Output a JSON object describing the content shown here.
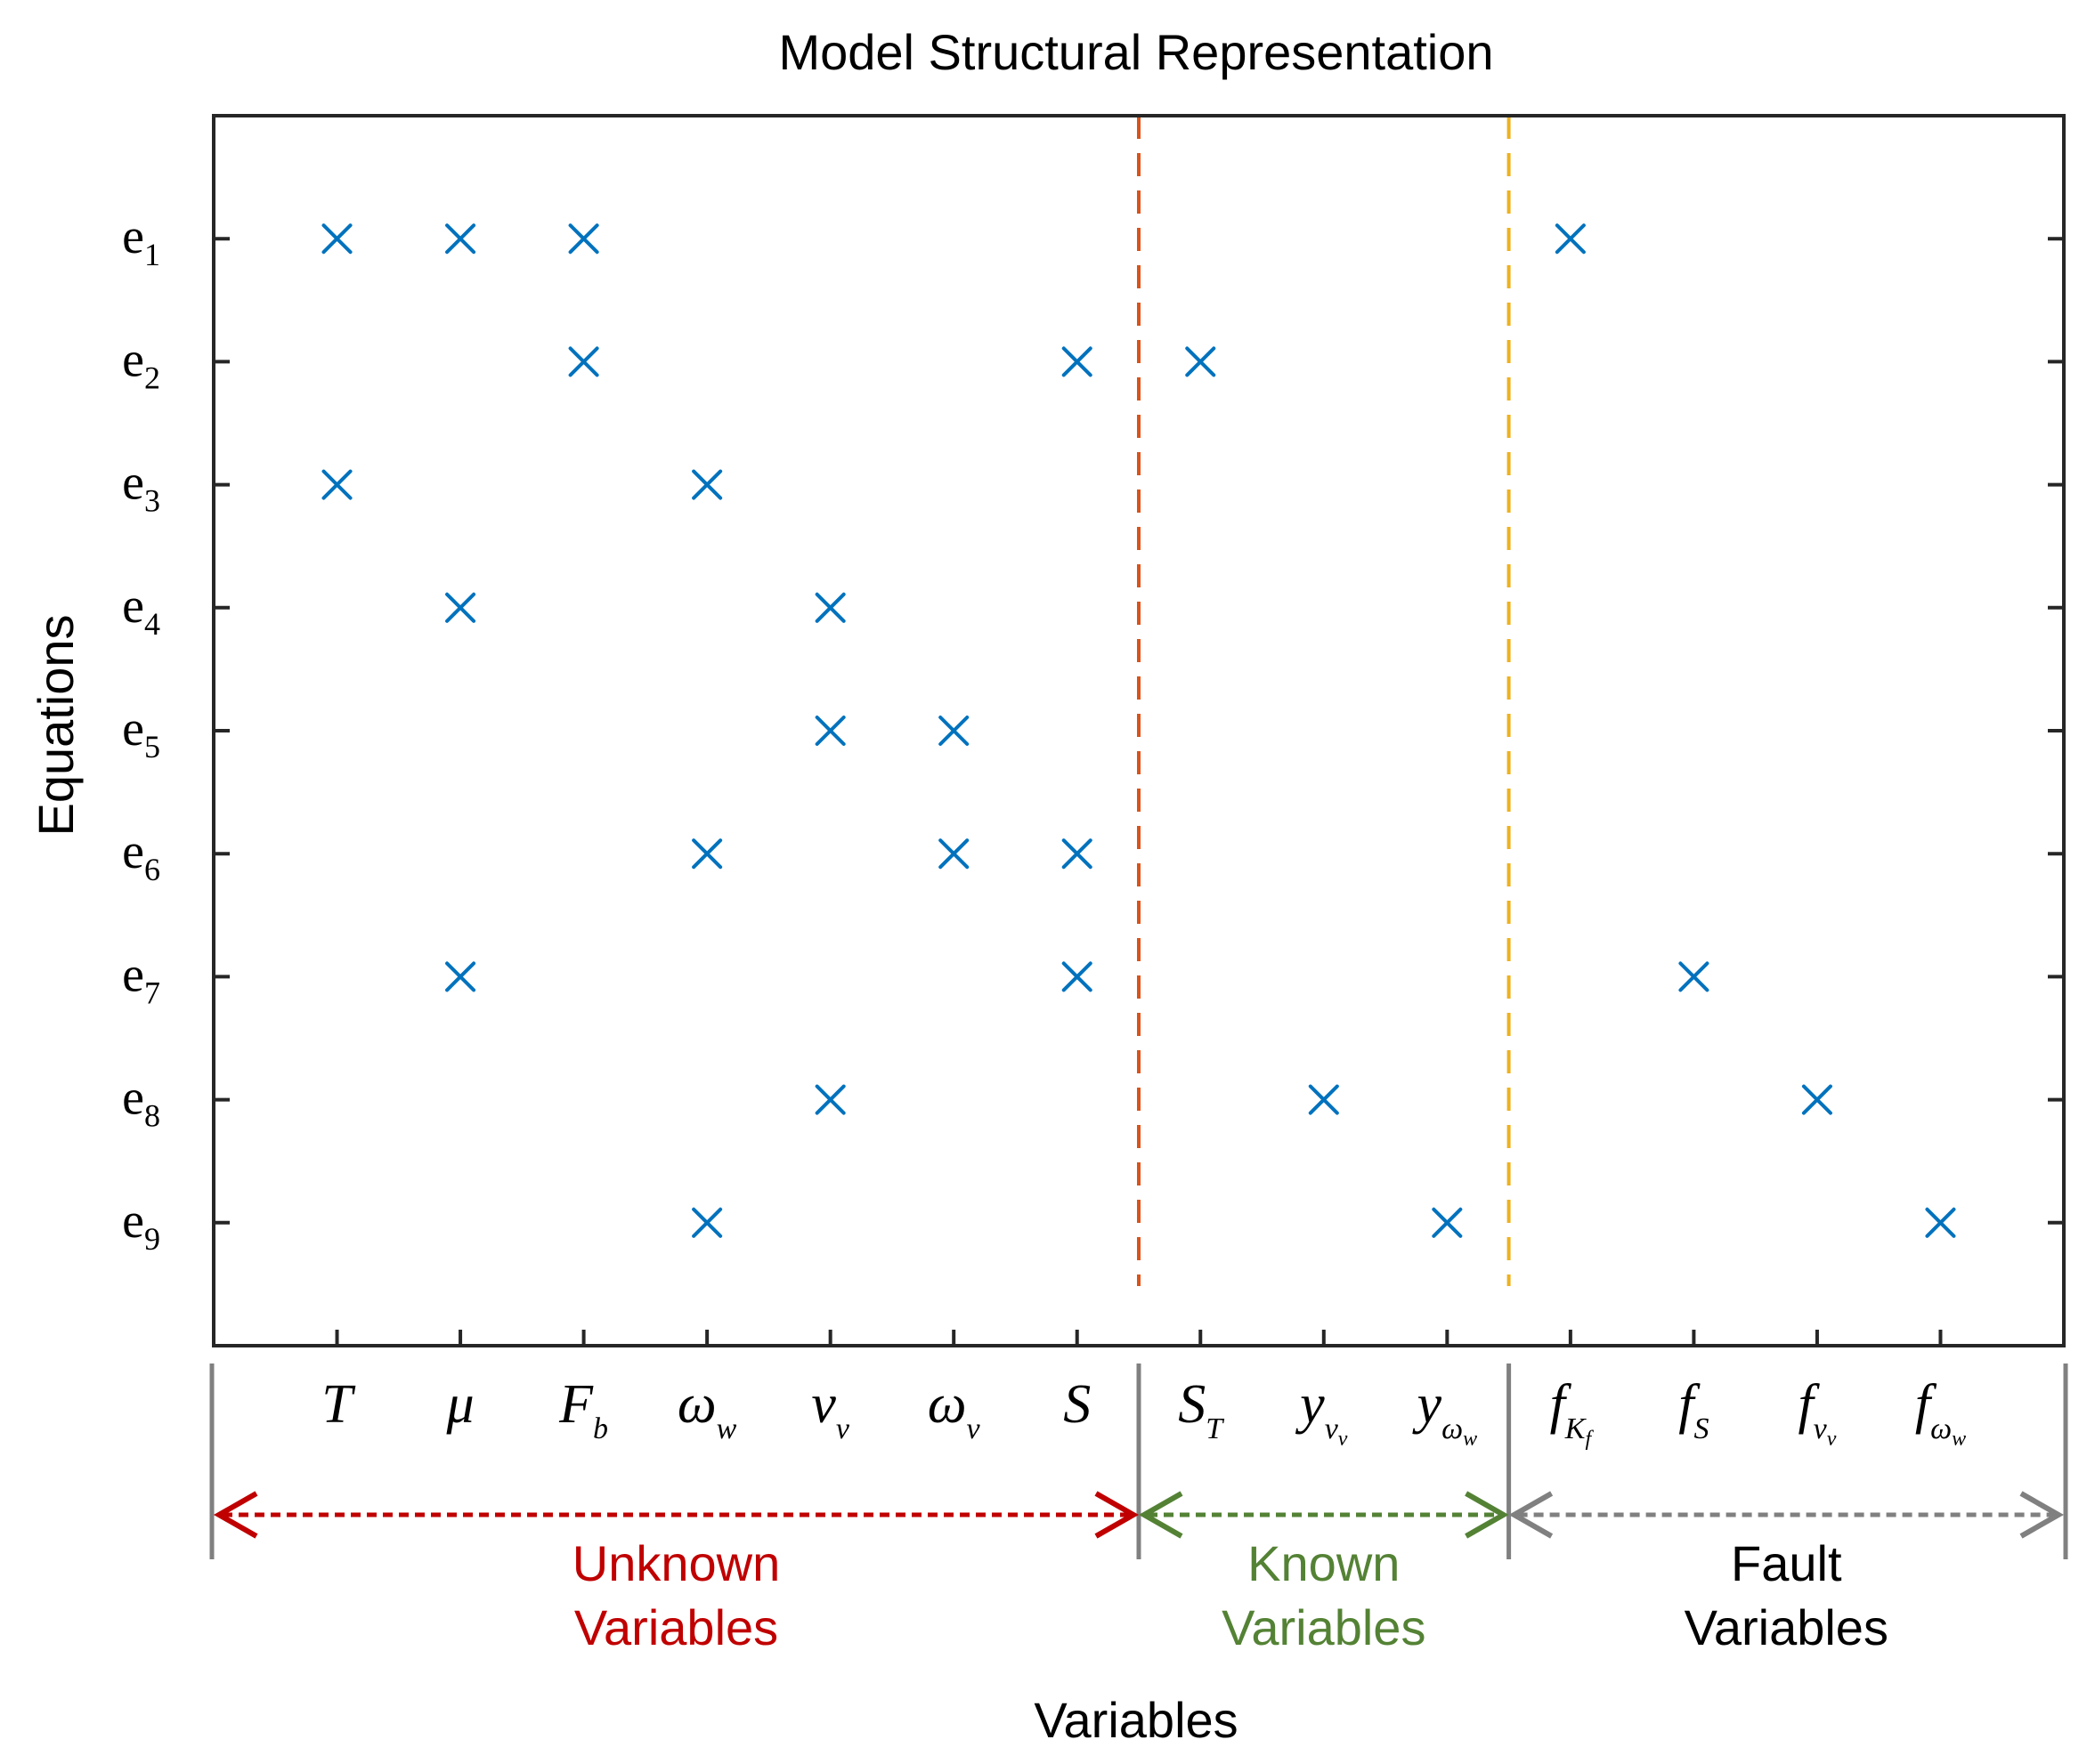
{
  "chart_data": {
    "type": "scatter",
    "title": "Model Structural Representation",
    "xlabel": "Variables",
    "ylabel": "Equations",
    "marker": "x",
    "marker_color": "#0072BD",
    "equations": [
      {
        "base": "e",
        "sub": "1"
      },
      {
        "base": "e",
        "sub": "2"
      },
      {
        "base": "e",
        "sub": "3"
      },
      {
        "base": "e",
        "sub": "4"
      },
      {
        "base": "e",
        "sub": "5"
      },
      {
        "base": "e",
        "sub": "6"
      },
      {
        "base": "e",
        "sub": "7"
      },
      {
        "base": "e",
        "sub": "8"
      },
      {
        "base": "e",
        "sub": "9"
      }
    ],
    "variables": [
      {
        "base": "T",
        "sub": ""
      },
      {
        "base": "μ",
        "sub": ""
      },
      {
        "base": "F",
        "sub": "b"
      },
      {
        "base": "ω",
        "sub": "w"
      },
      {
        "base": "v",
        "sub": "v"
      },
      {
        "base": "ω",
        "sub": "v"
      },
      {
        "base": "S",
        "sub": ""
      },
      {
        "base": "S",
        "sub": "T"
      },
      {
        "base": "y",
        "sub": "v",
        "subsub": "v"
      },
      {
        "base": "y",
        "sub": "ω",
        "subsub": "w"
      },
      {
        "base": "f",
        "sub": "K",
        "subsub": "f"
      },
      {
        "base": "f",
        "sub": "S"
      },
      {
        "base": "f",
        "sub": "v",
        "subsub": "v"
      },
      {
        "base": "f",
        "sub": "ω",
        "subsub": "w"
      }
    ],
    "xlim": [
      0,
      15
    ],
    "ylim": [
      0,
      10
    ],
    "points": [
      {
        "eq": 1,
        "var": 1
      },
      {
        "eq": 1,
        "var": 2
      },
      {
        "eq": 1,
        "var": 3
      },
      {
        "eq": 1,
        "var": 11
      },
      {
        "eq": 2,
        "var": 3
      },
      {
        "eq": 2,
        "var": 7
      },
      {
        "eq": 2,
        "var": 8
      },
      {
        "eq": 3,
        "var": 1
      },
      {
        "eq": 3,
        "var": 4
      },
      {
        "eq": 4,
        "var": 2
      },
      {
        "eq": 4,
        "var": 5
      },
      {
        "eq": 5,
        "var": 5
      },
      {
        "eq": 5,
        "var": 6
      },
      {
        "eq": 6,
        "var": 4
      },
      {
        "eq": 6,
        "var": 6
      },
      {
        "eq": 6,
        "var": 7
      },
      {
        "eq": 7,
        "var": 2
      },
      {
        "eq": 7,
        "var": 7
      },
      {
        "eq": 7,
        "var": 12
      },
      {
        "eq": 8,
        "var": 5
      },
      {
        "eq": 8,
        "var": 9
      },
      {
        "eq": 8,
        "var": 13
      },
      {
        "eq": 9,
        "var": 4
      },
      {
        "eq": 9,
        "var": 10
      },
      {
        "eq": 9,
        "var": 14
      }
    ],
    "separators": [
      {
        "x": 7.5,
        "color": "#D95319"
      },
      {
        "x": 10.5,
        "color": "#EDB120"
      }
    ],
    "groups": [
      {
        "line1": "Unknown",
        "line2": "Variables",
        "from": 0,
        "to": 7.5,
        "color": "#C00000"
      },
      {
        "line1": "Known",
        "line2": "Variables",
        "from": 7.5,
        "to": 10.5,
        "color": "#548235"
      },
      {
        "line1": "Fault",
        "line2": "Variables",
        "from": 10.5,
        "to": 15,
        "color": "#808080",
        "text_color": "#000000"
      }
    ]
  },
  "colors": {
    "axis": "#262626",
    "bracket": "#808080"
  }
}
